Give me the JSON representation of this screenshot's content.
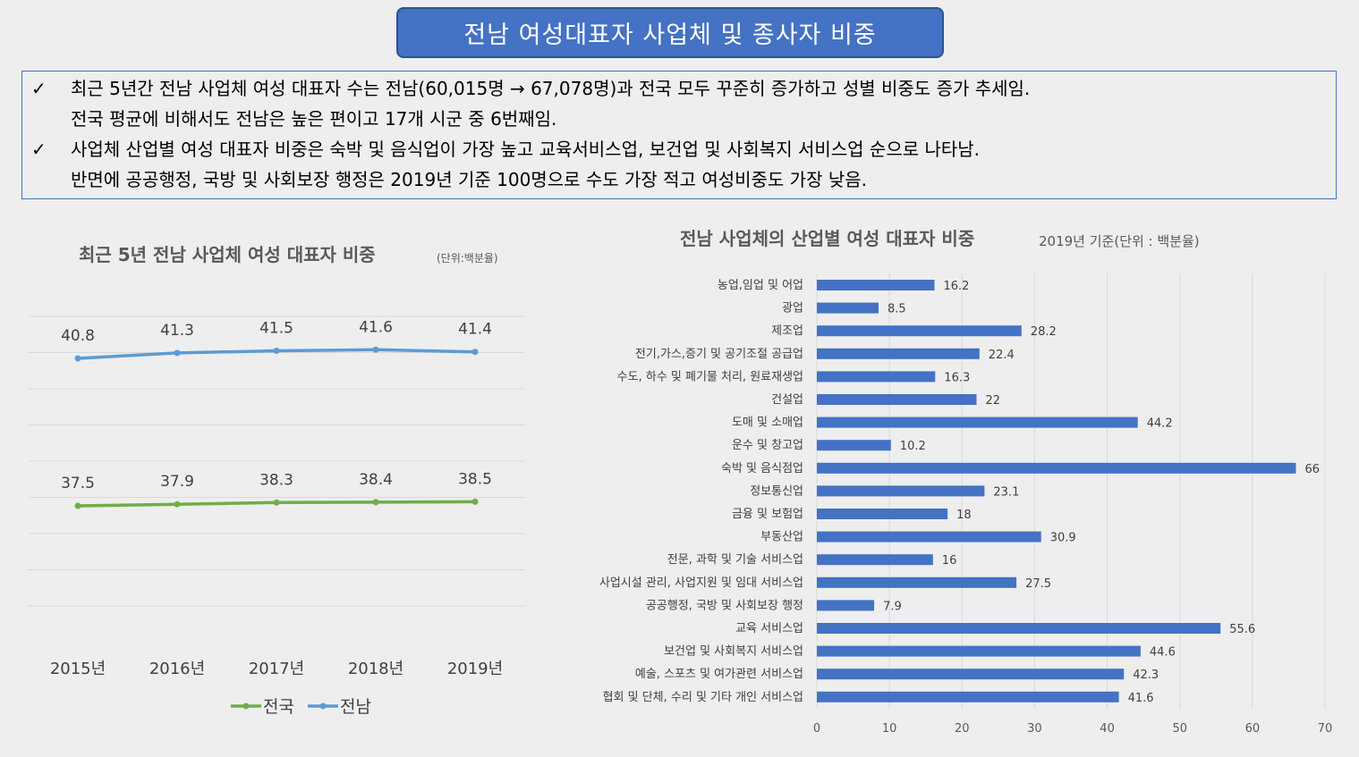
{
  "title": "전남 여성대표자 사업체 및 종사자 비중",
  "summary": {
    "bullets": [
      {
        "check": "✓",
        "lines": [
          "최근 5년간 전남 사업체 여성 대표자 수는 전남(60,015명 → 67,078명)과 전국 모두 꾸준히 증가하고 성별 비중도 증가 추세임.",
          "전국 평균에 비해서도 전남은 높은 편이고 17개 시군 중 6번째임."
        ]
      },
      {
        "check": "✓",
        "lines": [
          "사업체 산업별 여성 대표자 비중은 숙박 및 음식업이 가장 높고 교육서비스업, 보건업 및 사회복지 서비스업 순으로 나타남.",
          "반면에 공공행정, 국방 및 사회보장 행정은 2019년 기준 100명으로 수도 가장 적고 여성비중도 가장 낮음."
        ]
      }
    ]
  },
  "chart_data": [
    {
      "type": "line",
      "title": "최근 5년 전남 사업체 여성 대표자 비중",
      "unit_note": "(단위:백분율)",
      "categories": [
        "2015년",
        "2016년",
        "2017년",
        "2018년",
        "2019년"
      ],
      "series": [
        {
          "name": "전국",
          "color": "#70ad47",
          "values": [
            37.5,
            37.9,
            38.3,
            38.4,
            38.5
          ]
        },
        {
          "name": "전남",
          "color": "#5b9bd5",
          "values": [
            40.8,
            41.3,
            41.5,
            41.6,
            41.4
          ]
        }
      ],
      "legend_position": "bottom",
      "grid": true
    },
    {
      "type": "bar",
      "orientation": "horizontal",
      "title": "전남 사업체의 산업별 여성 대표자 비중",
      "subtitle": "2019년 기준(단위 : 백분율)",
      "color": "#4472c4",
      "categories": [
        "농업,임업 및 어업",
        "광업",
        "제조업",
        "전기,가스,증기 및 공기조절 공급업",
        "수도, 하수 및 폐기물 처리, 원료재생업",
        "건설업",
        "도매 및 소매업",
        "운수 및 창고업",
        "숙박 및 음식점업",
        "정보통신업",
        "금융 및 보험업",
        "부동산업",
        "전문, 과학 및 기술 서비스업",
        "사업시설 관리, 사업지원 및 임대 서비스업",
        "공공행정, 국방 및 사회보장 행정",
        "교육 서비스업",
        "보건업 및 사회복지 서비스업",
        "예술, 스포츠 및 여가관련 서비스업",
        "협회 및 단체, 수리 및 기타 개인 서비스업"
      ],
      "values": [
        16.2,
        8.5,
        28.2,
        22.4,
        16.3,
        22,
        44.2,
        10.2,
        66,
        23.1,
        18,
        30.9,
        16,
        27.5,
        7.9,
        55.6,
        44.6,
        42.3,
        41.6
      ],
      "value_labels": [
        "16.2",
        "8.5",
        "28.2",
        "22.4",
        "16.3",
        "22",
        "44.2",
        "10.2",
        "66",
        "23.1",
        "18",
        "30.9",
        "16",
        "27.5",
        "7.9",
        "55.6",
        "44.6",
        "42.3",
        "41.6"
      ],
      "xlim": [
        0,
        70
      ],
      "xticks": [
        "0",
        "10",
        "20",
        "30",
        "40",
        "50",
        "60",
        "70"
      ],
      "grid": true
    }
  ]
}
